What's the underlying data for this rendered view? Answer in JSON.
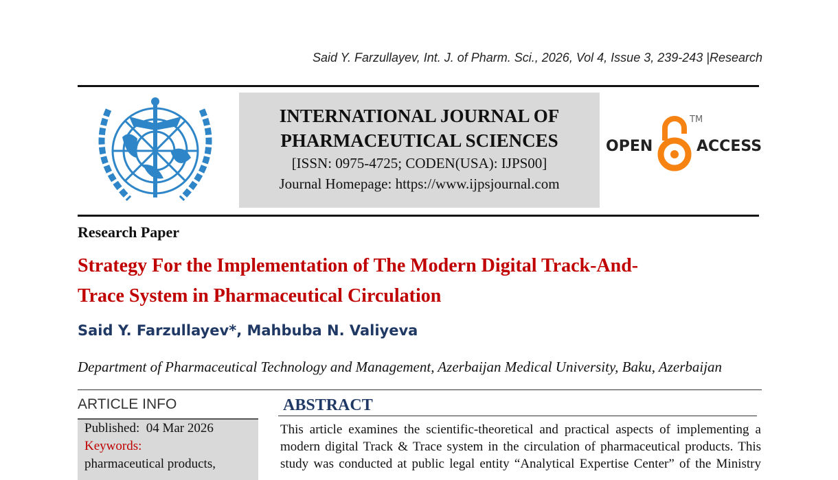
{
  "running_header": "Said Y. Farzullayev, Int. J. of Pharm. Sci., 2026, Vol 4, Issue 3, 239-243 |Research",
  "journal": {
    "name_line1": "INTERNATIONAL JOURNAL OF",
    "name_line2": "PHARMACEUTICAL SCIENCES",
    "issn": "[ISSN: 0975-4725; CODEN(USA): IJPS00]",
    "homepage": "Journal Homepage: https://www.ijpsjournal.com"
  },
  "open_access": {
    "left": "OPEN",
    "right": "ACCESS",
    "tm": "TM",
    "color": "#f68212"
  },
  "article_type": "Research Paper",
  "title_line1": "Strategy For the Implementation of The Modern Digital Track-And-",
  "title_line2": "Trace System in Pharmaceutical Circulation",
  "authors": "Said Y. Farzullayev*, Mahbuba N. Valiyeva",
  "affiliation": "Department of Pharmaceutical Technology and Management, Azerbaijan Medical University, Baku, Azerbaijan",
  "article_info": {
    "heading": "ARTICLE INFO",
    "published": "Published:  04 Mar 2026",
    "keywords_label": "Keywords:",
    "keywords": "pharmaceutical products,"
  },
  "abstract": {
    "heading": "ABSTRACT",
    "lines": [
      "This article examines the scientific-theoretical and practical aspects of implementing a",
      "modern digital Track & Trace system in the circulation of pharmaceutical products. This",
      "study was conducted at public legal entity “Analytical Expertise Center” of the Ministry"
    ]
  }
}
